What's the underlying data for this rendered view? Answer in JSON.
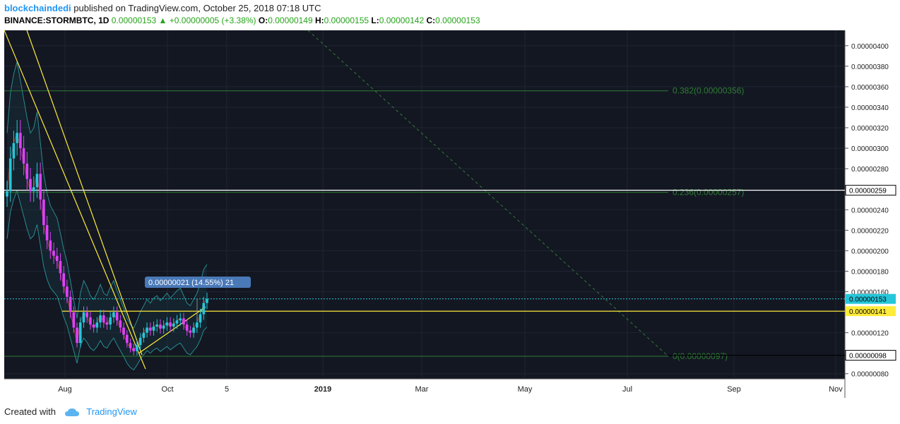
{
  "header": {
    "author": "blockchaindedi",
    "published_text": " published on TradingView.com, October 25, 2018 07:18 UTC",
    "symbol": "BINANCE:STORMBTC, 1D",
    "last": "0.00000153",
    "change_arrow": "▲",
    "change": "+0.00000005 (+3.38%)",
    "o_label": "O:",
    "o": "0.00000149",
    "h_label": "H:",
    "h": "0.00000155",
    "l_label": "L:",
    "l": "0.00000142",
    "c_label": "C:",
    "c": "0.00000153"
  },
  "colors": {
    "background": "#131722",
    "grid": "#1f2433",
    "up": "#26c6da",
    "down": "#e040fb",
    "fib": "#2e7d32",
    "trend": "#ffeb3b",
    "bb": "#1b5e63"
  },
  "chart_data": {
    "type": "candlestick",
    "y_axis_ticks": [
      "0.00000400",
      "0.00000380",
      "0.00000360",
      "0.00000340",
      "0.00000320",
      "0.00000300",
      "0.00000280",
      "0.00000240",
      "0.00000220",
      "0.00000200",
      "0.00000180",
      "0.00000160",
      "0.00000120",
      "0.00000080"
    ],
    "ylim": [
      7.5e-07,
      4.15e-06
    ],
    "x_axis_ticks": [
      "Aug",
      "Oct",
      "5",
      "2019",
      "Mar",
      "May",
      "Jul",
      "Sep",
      "Nov"
    ],
    "fib_levels": [
      {
        "label": "0.382(0.00000356)",
        "value": 3.56e-06
      },
      {
        "label": "0.236(0.00000257)",
        "value": 2.57e-06
      },
      {
        "label": "0(0.00000097)",
        "value": 9.7e-07
      }
    ],
    "price_tags": [
      {
        "text": "0.00000259",
        "style": "white"
      },
      {
        "text": "0.00000153",
        "style": "cyan"
      },
      {
        "text": "0.00000141",
        "style": "yellow"
      },
      {
        "text": "0.00000098",
        "style": "white"
      }
    ],
    "measure_label": "0.00000021 (14.55%) 21",
    "close_series": [
      2.58e-06,
      2.9e-06,
      3.05e-06,
      3.15e-06,
      3e-06,
      2.85e-06,
      2.7e-06,
      2.58e-06,
      2.62e-06,
      2.75e-06,
      2.5e-06,
      2.25e-06,
      2.1e-06,
      2e-06,
      1.95e-06,
      1.9e-06,
      1.78e-06,
      1.65e-06,
      1.55e-06,
      1.4e-06,
      1.25e-06,
      1.1e-06,
      1.3e-06,
      1.4e-06,
      1.35e-06,
      1.28e-06,
      1.25e-06,
      1.3e-06,
      1.37e-06,
      1.3e-06,
      1.28e-06,
      1.35e-06,
      1.4e-06,
      1.32e-06,
      1.25e-06,
      1.18e-06,
      1.1e-06,
      1.05e-06,
      1.02e-06,
      1.08e-06,
      1.15e-06,
      1.2e-06,
      1.25e-06,
      1.22e-06,
      1.26e-06,
      1.28e-06,
      1.24e-06,
      1.27e-06,
      1.3e-06,
      1.26e-06,
      1.29e-06,
      1.32e-06,
      1.34e-06,
      1.28e-06,
      1.22e-06,
      1.2e-06,
      1.25e-06,
      1.3e-06,
      1.38e-06,
      1.49e-06,
      1.53e-06
    ]
  },
  "footer": {
    "created_with": "Created with",
    "brand": "TradingView"
  }
}
